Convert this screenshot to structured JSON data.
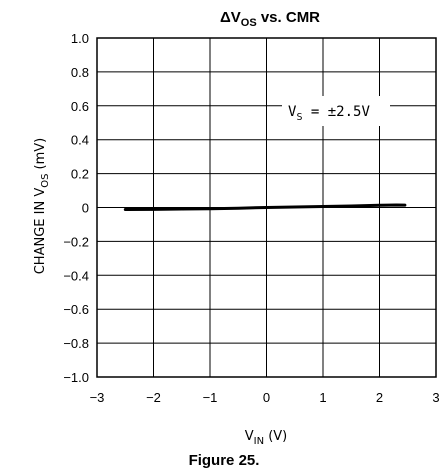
{
  "chart_data": {
    "type": "line",
    "title": {
      "main": "ΔV",
      "sub": "OS",
      "rest": " vs. CMR"
    },
    "xlabel": {
      "main": "V",
      "sub": "IN",
      "rest": " (V)"
    },
    "ylabel": {
      "pre": "CHANGE IN V",
      "sub": "OS",
      "rest": " (mV)"
    },
    "xlim": [
      -3,
      3
    ],
    "ylim": [
      -1.0,
      1.0
    ],
    "xticks": [
      -3,
      -2,
      -1,
      0,
      1,
      2,
      3
    ],
    "yticks": [
      1.0,
      0.8,
      0.6,
      0.4,
      0.2,
      0,
      -0.2,
      -0.4,
      -0.6,
      -0.8,
      -1.0
    ],
    "xtick_labels": [
      "−3",
      "−2",
      "−1",
      "0",
      "1",
      "2",
      "3"
    ],
    "ytick_labels": [
      "1.0",
      "0.8",
      "0.6",
      "0.4",
      "0.2",
      "0",
      "−0.2",
      "−0.4",
      "−0.6",
      "−0.8",
      "−1.0"
    ],
    "grid": true,
    "annotation": {
      "main": "V",
      "sub": "S",
      "rest": " = ±2.5V"
    },
    "series": [
      {
        "x": [
          -2.5,
          -2.0,
          -1.5,
          -1.0,
          -0.5,
          0,
          0.5,
          1.0,
          1.5,
          2.0,
          2.3,
          2.45
        ],
        "values": [
          -0.012,
          -0.011,
          -0.009,
          -0.007,
          -0.004,
          0.0,
          0.003,
          0.006,
          0.009,
          0.013,
          0.015,
          0.014
        ],
        "color": "#000000"
      }
    ]
  },
  "figure_caption": "Figure 25."
}
